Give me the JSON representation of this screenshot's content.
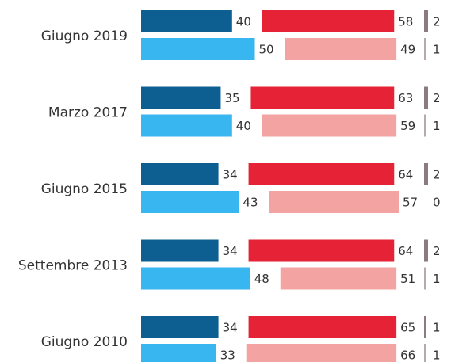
{
  "chart_data": {
    "type": "bar",
    "categories": [
      "Giugno 2019",
      "Marzo 2017",
      "Giugno 2015",
      "Settembre 2013",
      "Giugno 2010"
    ],
    "series": [
      {
        "color": "#0d5f91",
        "values": [
          40,
          35,
          34,
          34,
          34
        ]
      },
      {
        "color": "#e52236",
        "values": [
          58,
          63,
          64,
          64,
          65
        ]
      },
      {
        "color": "#8c7a80",
        "values": [
          2,
          2,
          2,
          2,
          1
        ]
      },
      {
        "color": "#38b6ef",
        "values": [
          50,
          40,
          43,
          48,
          33
        ]
      },
      {
        "color": "#f4a3a3",
        "values": [
          49,
          59,
          57,
          51,
          66
        ]
      },
      {
        "color": "#b8aaac",
        "values": [
          1,
          1,
          0,
          1,
          1
        ]
      }
    ]
  }
}
